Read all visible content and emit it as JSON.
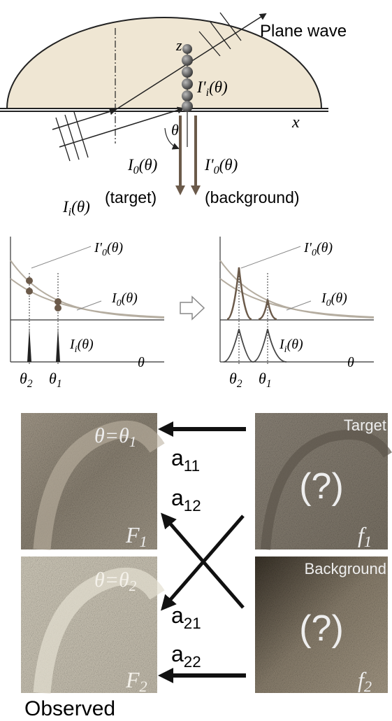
{
  "top": {
    "plane_wave": "Plane wave",
    "z_axis": "z",
    "x_axis": "x",
    "angle": "θ",
    "scattered": {
      "base": "I'",
      "sub": "i",
      "tail": "(θ)"
    },
    "target_intensity": {
      "base": "I",
      "sub": "0",
      "tail": "(θ)"
    },
    "background_intensity": {
      "base": "I'",
      "sub": "0",
      "tail": "(θ)"
    },
    "incident": {
      "base": "I",
      "sub": "i",
      "tail": "(θ)"
    },
    "target_note": "(target)",
    "background_note": "(background)"
  },
  "plots": [
    {
      "background_curve": {
        "base": "I'",
        "sub": "0",
        "tail": "(θ)"
      },
      "target_curve": {
        "base": "I",
        "sub": "0",
        "tail": "(θ)"
      },
      "incident_curve": {
        "base": "I",
        "sub": "i",
        "tail": "(θ)"
      },
      "axis": "θ",
      "theta2": {
        "base": "θ",
        "sub": "2"
      },
      "theta1": {
        "base": "θ",
        "sub": "1"
      }
    },
    {
      "background_curve": {
        "base": "I'",
        "sub": "0",
        "tail": "(θ)"
      },
      "target_curve": {
        "base": "I",
        "sub": "0",
        "tail": "(θ)"
      },
      "incident_curve": {
        "base": "I",
        "sub": "i",
        "tail": "(θ)"
      },
      "axis": "θ",
      "theta2": {
        "base": "θ",
        "sub": "2"
      },
      "theta1": {
        "base": "θ",
        "sub": "1"
      }
    }
  ],
  "images": {
    "F1": {
      "condition": {
        "lhs": "θ=θ",
        "sub": "1"
      },
      "label": {
        "base": "F",
        "sub": "1"
      }
    },
    "F2": {
      "condition": {
        "lhs": "θ=θ",
        "sub": "2"
      },
      "label": {
        "base": "F",
        "sub": "2"
      }
    },
    "f1": {
      "title": "Target",
      "unknown": "(?)",
      "label": {
        "base": "f",
        "sub": "1"
      }
    },
    "f2": {
      "title": "Background",
      "unknown": "(?)",
      "label": {
        "base": "f",
        "sub": "2"
      }
    },
    "a11": {
      "base": "a",
      "sub": "11"
    },
    "a12": {
      "base": "a",
      "sub": "12"
    },
    "a21": {
      "base": "a",
      "sub": "21"
    },
    "a22": {
      "base": "a",
      "sub": "22"
    },
    "observed": "Observed"
  }
}
